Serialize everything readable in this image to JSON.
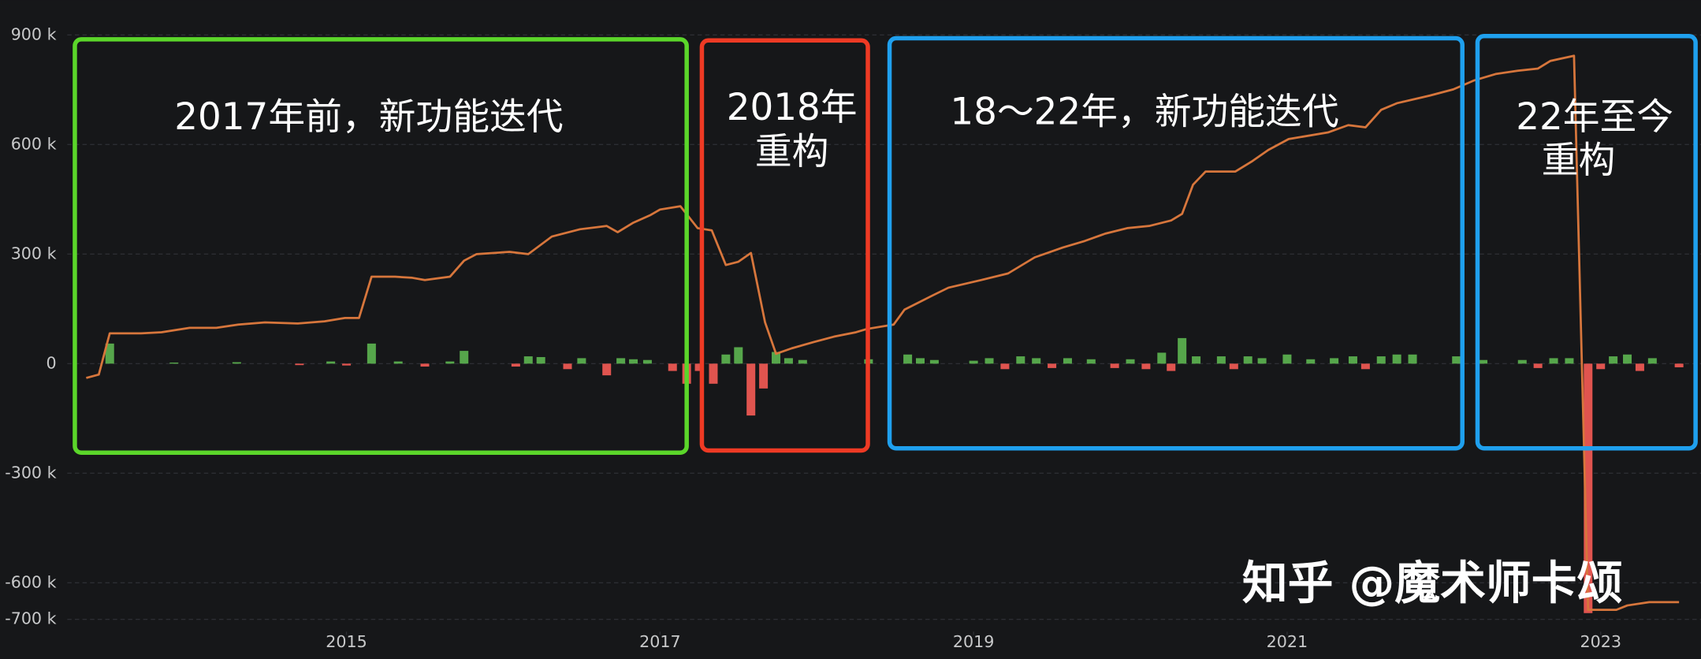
{
  "chart_data": {
    "type": "line",
    "ylim": [
      -808000,
      995000
    ],
    "yticks": [
      {
        "value": 900000,
        "label": "900 k"
      },
      {
        "value": 600000,
        "label": "600 k"
      },
      {
        "value": 300000,
        "label": "300 k"
      },
      0,
      {
        "value": -300000,
        "label": "-300 k"
      },
      {
        "value": -600000,
        "label": "-600 k"
      },
      {
        "value": -700000,
        "label": "-700 k"
      }
    ],
    "xlim": [
      2012.79,
      2023.64
    ],
    "xticks": [
      2015,
      2017,
      2019,
      2021,
      2023
    ],
    "grid": true,
    "series": [
      {
        "type": "line",
        "color": "#d7763c",
        "x": [
          2013.34,
          2013.42,
          2013.49,
          2013.69,
          2013.82,
          2014.0,
          2014.17,
          2014.31,
          2014.48,
          2014.69,
          2014.86,
          2014.99,
          2015.08,
          2015.16,
          2015.31,
          2015.42,
          2015.5,
          2015.66,
          2015.75,
          2015.83,
          2016.04,
          2016.16,
          2016.31,
          2016.49,
          2016.66,
          2016.73,
          2016.83,
          2016.94,
          2017.0,
          2017.13,
          2017.24,
          2017.33,
          2017.42,
          2017.5,
          2017.58,
          2017.67,
          2017.74,
          2017.84,
          2017.98,
          2018.11,
          2018.25,
          2018.32,
          2018.49,
          2018.56,
          2018.74,
          2018.84,
          2019.05,
          2019.22,
          2019.39,
          2019.57,
          2019.71,
          2019.84,
          2019.98,
          2020.12,
          2020.26,
          2020.33,
          2020.4,
          2020.48,
          2020.67,
          2020.78,
          2020.88,
          2021.01,
          2021.26,
          2021.39,
          2021.5,
          2021.6,
          2021.7,
          2021.91,
          2022.06,
          2022.19,
          2022.33,
          2022.47,
          2022.6,
          2022.68,
          2022.83,
          2022.92,
          2023.1,
          2023.17,
          2023.31,
          2023.5
        ],
        "values": [
          -39000,
          -30000,
          83000,
          83000,
          86000,
          98000,
          98000,
          107000,
          113000,
          110000,
          116000,
          125000,
          125000,
          238000,
          238000,
          235000,
          229000,
          238000,
          282000,
          300000,
          306000,
          300000,
          348000,
          368000,
          377000,
          360000,
          386000,
          407000,
          422000,
          431000,
          371000,
          365000,
          270000,
          279000,
          303000,
          113000,
          27000,
          42000,
          59000,
          74000,
          86000,
          95000,
          107000,
          148000,
          187000,
          208000,
          229000,
          247000,
          291000,
          318000,
          336000,
          356000,
          371000,
          377000,
          392000,
          410000,
          490000,
          526000,
          526000,
          555000,
          585000,
          615000,
          633000,
          653000,
          647000,
          695000,
          713000,
          734000,
          751000,
          775000,
          793000,
          802000,
          808000,
          829000,
          843000,
          -674000,
          -674000,
          -662000,
          -653000,
          -653000
        ]
      },
      {
        "type": "bar",
        "color": "#56a64b",
        "negative_color": "#e0544f",
        "x": [
          2013.49,
          2013.9,
          2014.3,
          2014.7,
          2014.9,
          2015.0,
          2015.16,
          2015.33,
          2015.5,
          2015.66,
          2015.75,
          2016.08,
          2016.16,
          2016.24,
          2016.41,
          2016.5,
          2016.66,
          2016.75,
          2016.83,
          2016.92,
          2017.08,
          2017.17,
          2017.25,
          2017.34,
          2017.42,
          2017.5,
          2017.58,
          2017.66,
          2017.74,
          2017.82,
          2017.91,
          2018.33,
          2018.58,
          2018.66,
          2018.75,
          2019.0,
          2019.1,
          2019.2,
          2019.3,
          2019.4,
          2019.5,
          2019.6,
          2019.75,
          2019.9,
          2020.0,
          2020.1,
          2020.2,
          2020.26,
          2020.33,
          2020.42,
          2020.58,
          2020.66,
          2020.75,
          2020.84,
          2021.0,
          2021.15,
          2021.3,
          2021.42,
          2021.5,
          2021.6,
          2021.7,
          2021.8,
          2022.08,
          2022.25,
          2022.5,
          2022.6,
          2022.7,
          2022.8,
          2022.92,
          2023.0,
          2023.08,
          2023.17,
          2023.25,
          2023.33,
          2023.5
        ],
        "values": [
          55000,
          3000,
          4000,
          -4000,
          6000,
          -5000,
          55000,
          6000,
          -8000,
          6000,
          35000,
          -8000,
          20000,
          18000,
          -15000,
          15000,
          -32000,
          15000,
          12000,
          10000,
          -20000,
          -55000,
          -20000,
          -55000,
          25000,
          45000,
          -142000,
          -68000,
          32000,
          15000,
          10000,
          12000,
          25000,
          15000,
          10000,
          8000,
          15000,
          -15000,
          20000,
          15000,
          -12000,
          15000,
          12000,
          -12000,
          12000,
          -15000,
          30000,
          -20000,
          70000,
          20000,
          20000,
          -15000,
          20000,
          15000,
          25000,
          12000,
          15000,
          20000,
          -15000,
          20000,
          25000,
          25000,
          20000,
          10000,
          10000,
          -12000,
          15000,
          15000,
          -683000,
          -15000,
          20000,
          25000,
          -20000,
          15000,
          -10000
        ]
      }
    ]
  },
  "annotations": [
    {
      "lines": [
        "2017年前，新功能迭代"
      ],
      "color": "#5bd62a"
    },
    {
      "lines": [
        "2018年",
        "重构"
      ],
      "color": "#ee3a24"
    },
    {
      "lines": [
        "18～22年，新功能迭代"
      ],
      "color": "#1fa0ee"
    },
    {
      "lines": [
        "22年至今",
        "重构"
      ],
      "color": "#1fa0ee"
    }
  ],
  "watermark": "知乎 @魔术师卡颂"
}
